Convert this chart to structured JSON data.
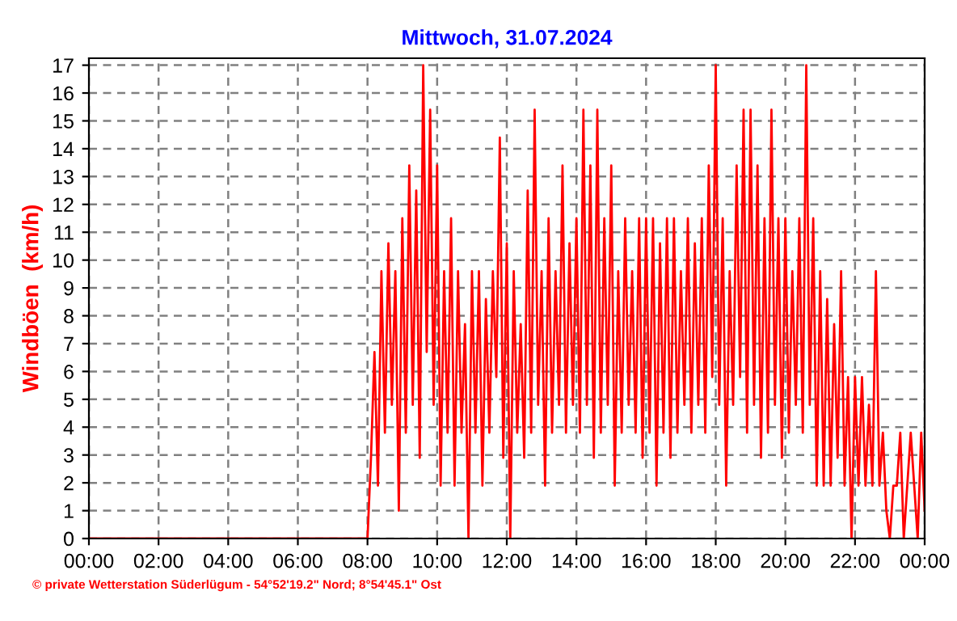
{
  "chart_data": {
    "type": "line",
    "title": "Mittwoch, 31.07.2024",
    "ylabel": "Windböen  (km/h)",
    "annotations": [
      "© private Wetterstation Süderlügum - 54°52'19.2\" Nord; 8°54'45.1\" Ost"
    ],
    "xlim": [
      0,
      24
    ],
    "ylim": [
      0,
      17.25
    ],
    "xticks": [
      {
        "value": 0,
        "label": "00:00"
      },
      {
        "value": 2,
        "label": "02:00"
      },
      {
        "value": 4,
        "label": "04:00"
      },
      {
        "value": 6,
        "label": "06:00"
      },
      {
        "value": 8,
        "label": "08:00"
      },
      {
        "value": 10,
        "label": "10:00"
      },
      {
        "value": 12,
        "label": "12:00"
      },
      {
        "value": 14,
        "label": "14:00"
      },
      {
        "value": 16,
        "label": "16:00"
      },
      {
        "value": 18,
        "label": "18:00"
      },
      {
        "value": 20,
        "label": "20:00"
      },
      {
        "value": 22,
        "label": "22:00"
      },
      {
        "value": 24,
        "label": "00:00"
      }
    ],
    "yticks": [
      0,
      1,
      2,
      3,
      4,
      5,
      6,
      7,
      8,
      9,
      10,
      11,
      12,
      13,
      14,
      15,
      16,
      17
    ],
    "grid": true,
    "marker": "none",
    "line_style": "solid",
    "x": [
      0,
      7.9,
      8.0,
      8.1,
      8.2,
      8.3,
      8.4,
      8.5,
      8.6,
      8.7,
      8.8,
      8.9,
      9.0,
      9.1,
      9.2,
      9.3,
      9.4,
      9.5,
      9.6,
      9.7,
      9.8,
      9.9,
      10.0,
      10.1,
      10.2,
      10.3,
      10.4,
      10.5,
      10.6,
      10.7,
      10.8,
      10.9,
      11.0,
      11.1,
      11.2,
      11.3,
      11.4,
      11.5,
      11.6,
      11.7,
      11.8,
      11.9,
      12.0,
      12.1,
      12.2,
      12.3,
      12.4,
      12.5,
      12.6,
      12.7,
      12.8,
      12.9,
      13.0,
      13.1,
      13.2,
      13.3,
      13.4,
      13.5,
      13.6,
      13.7,
      13.8,
      13.9,
      14.0,
      14.1,
      14.2,
      14.3,
      14.4,
      14.5,
      14.6,
      14.7,
      14.8,
      14.9,
      15.0,
      15.1,
      15.2,
      15.3,
      15.4,
      15.5,
      15.6,
      15.7,
      15.8,
      15.9,
      16.0,
      16.1,
      16.2,
      16.3,
      16.4,
      16.5,
      16.6,
      16.7,
      16.8,
      16.9,
      17.0,
      17.1,
      17.2,
      17.3,
      17.4,
      17.5,
      17.6,
      17.7,
      17.8,
      17.9,
      18.0,
      18.1,
      18.2,
      18.3,
      18.4,
      18.5,
      18.6,
      18.7,
      18.8,
      18.9,
      19.0,
      19.1,
      19.2,
      19.3,
      19.4,
      19.5,
      19.6,
      19.7,
      19.8,
      19.9,
      20.0,
      20.1,
      20.2,
      20.3,
      20.4,
      20.5,
      20.6,
      20.7,
      20.8,
      20.9,
      21.0,
      21.1,
      21.2,
      21.3,
      21.4,
      21.5,
      21.6,
      21.7,
      21.8,
      21.9,
      22.0,
      22.1,
      22.2,
      22.3,
      22.4,
      22.5,
      22.6,
      22.7,
      22.8,
      22.9,
      23.0,
      23.1,
      23.2,
      23.3,
      23.4,
      23.5,
      23.6,
      23.7,
      23.8,
      23.9,
      24.0
    ],
    "series": [
      {
        "color": "#ff0000",
        "values": [
          0,
          0,
          0,
          2.9,
          6.7,
          1.9,
          9.6,
          3.8,
          10.6,
          4.8,
          9.6,
          1.0,
          11.5,
          3.8,
          13.4,
          4.8,
          12.5,
          2.9,
          17.0,
          6.7,
          15.4,
          4.8,
          13.4,
          1.9,
          9.6,
          3.8,
          11.5,
          1.9,
          9.6,
          3.8,
          7.7,
          0,
          9.6,
          3.8,
          9.6,
          1.9,
          8.6,
          3.8,
          9.6,
          5.8,
          14.4,
          2.9,
          10.6,
          0,
          9.6,
          3.8,
          7.7,
          2.9,
          12.5,
          3.8,
          15.4,
          4.8,
          9.6,
          1.9,
          11.5,
          3.8,
          9.6,
          4.8,
          13.4,
          3.8,
          10.6,
          4.8,
          11.5,
          3.8,
          15.4,
          4.8,
          13.4,
          2.9,
          15.4,
          3.8,
          11.5,
          4.8,
          13.4,
          1.9,
          9.6,
          3.8,
          11.5,
          4.8,
          9.6,
          3.8,
          11.5,
          2.9,
          11.5,
          3.8,
          11.5,
          1.9,
          10.6,
          3.8,
          11.5,
          2.9,
          11.5,
          3.8,
          9.6,
          4.8,
          11.5,
          3.8,
          10.6,
          4.8,
          11.5,
          3.8,
          13.4,
          5.8,
          17.0,
          4.8,
          11.5,
          1.9,
          9.6,
          4.8,
          13.4,
          5.8,
          15.4,
          3.8,
          15.4,
          4.8,
          13.4,
          2.9,
          11.5,
          3.8,
          15.4,
          4.8,
          11.5,
          2.9,
          11.5,
          3.8,
          9.6,
          4.8,
          11.5,
          3.8,
          17.0,
          4.8,
          11.5,
          1.9,
          9.6,
          1.9,
          8.6,
          1.9,
          7.7,
          2.9,
          9.6,
          1.9,
          5.8,
          0,
          5.8,
          1.9,
          5.8,
          1.9,
          4.8,
          1.9,
          9.6,
          1.9,
          3.8,
          1.0,
          0,
          1.9,
          1.9,
          3.8,
          0,
          1.9,
          3.8,
          1.9,
          0,
          3.8,
          1.0
        ]
      }
    ]
  }
}
